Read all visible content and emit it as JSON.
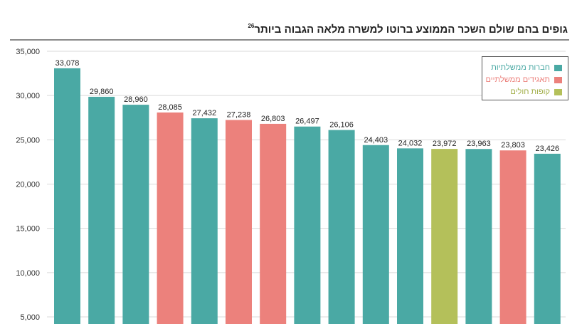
{
  "title": "גופים בהם שולם השכר הממוצע ברוטו למשרה מלאה הגבוה ביותר",
  "title_footnote": "26",
  "colors": {
    "government_companies": "#4aa9a4",
    "government_corporations": "#ec817c",
    "health_funds": "#b4c05a"
  },
  "legend": [
    {
      "label": "חברות ממשלתיות",
      "color_key": "government_companies"
    },
    {
      "label": "תאגידים ממשלתיים",
      "color_key": "government_corporations"
    },
    {
      "label": "קופות חולים",
      "color_key": "health_funds"
    }
  ],
  "chart_data": {
    "type": "bar",
    "title": "גופים בהם שולם השכר הממוצע ברוטו למשרה מלאה הגבוה ביותר",
    "xlabel": "",
    "ylabel": "",
    "ylim": [
      0,
      35000
    ],
    "yticks": [
      "35,000",
      "30,000",
      "25,000",
      "20,000",
      "15,000",
      "10,000",
      "5,000"
    ],
    "ytick_values": [
      35000,
      30000,
      25000,
      20000,
      15000,
      10000,
      5000
    ],
    "grid": true,
    "legend_position": "top-right",
    "values": [
      33078,
      29860,
      28960,
      28085,
      27432,
      27238,
      26803,
      26497,
      26106,
      24403,
      24032,
      23972,
      23963,
      23803,
      23426
    ],
    "value_labels": [
      "33,078",
      "29,860",
      "28,960",
      "28,085",
      "27,432",
      "27,238",
      "26,803",
      "26,497",
      "26,106",
      "24,403",
      "24,032",
      "23,972",
      "23,963",
      "23,803",
      "23,426"
    ],
    "groups": [
      "government_companies",
      "government_companies",
      "government_companies",
      "government_corporations",
      "government_companies",
      "government_corporations",
      "government_corporations",
      "government_companies",
      "government_companies",
      "government_companies",
      "government_companies",
      "health_funds",
      "government_companies",
      "government_corporations",
      "government_companies"
    ]
  }
}
